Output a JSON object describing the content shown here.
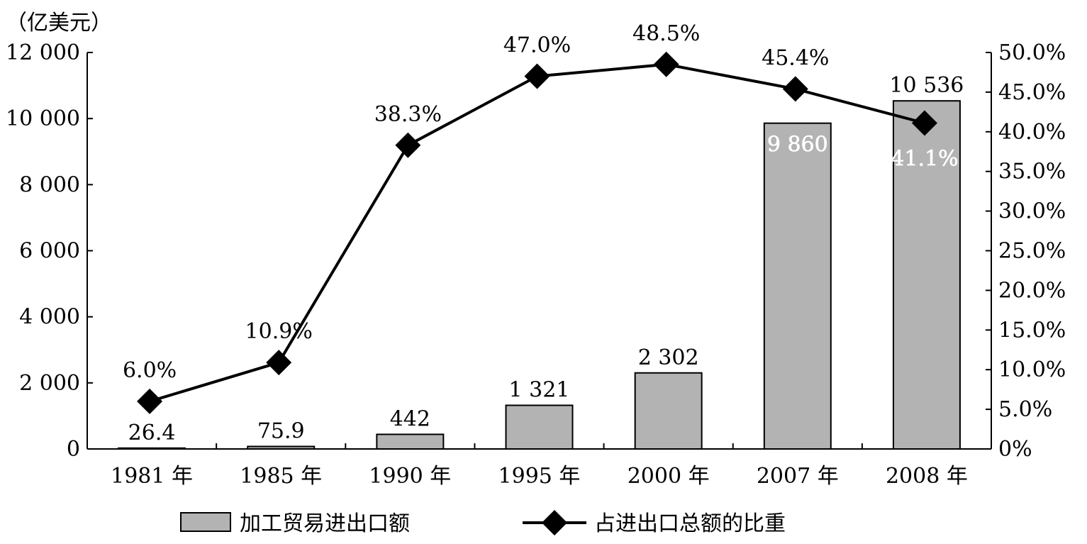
{
  "chart_data": {
    "type": "bar",
    "unit_label": "（亿美元）",
    "categories": [
      "1981 年",
      "1985 年",
      "1990 年",
      "1995 年",
      "2000 年",
      "2007 年",
      "2008 年"
    ],
    "series": [
      {
        "name": "加工贸易进出口额",
        "type": "bar",
        "axis": "left",
        "color": "#b3b3b3",
        "values": [
          26.4,
          75.9,
          442,
          1321,
          2302,
          9860,
          10536
        ],
        "labels": [
          "26.4",
          "75.9",
          "442",
          "1 321",
          "2 302",
          "9 860",
          "10 536"
        ]
      },
      {
        "name": "占进出口总额的比重",
        "type": "line",
        "axis": "right",
        "color": "#000000",
        "values": [
          6.0,
          10.9,
          38.3,
          47.0,
          48.5,
          45.4,
          41.1
        ],
        "labels": [
          "6.0%",
          "10.9%",
          "38.3%",
          "47.0%",
          "48.5%",
          "45.4%",
          "41.1%"
        ]
      }
    ],
    "y_left": {
      "ylim": [
        0,
        12000
      ],
      "ticks": [
        0,
        2000,
        4000,
        6000,
        8000,
        10000,
        12000
      ],
      "tick_labels": [
        "0",
        "2 000",
        "4 000",
        "6 000",
        "8 000",
        "10 000",
        "12 000"
      ]
    },
    "y_right": {
      "ylim": [
        0,
        50
      ],
      "ticks": [
        0,
        5,
        10,
        15,
        20,
        25,
        30,
        35,
        40,
        45,
        50
      ],
      "tick_labels": [
        "0%",
        "5.0%",
        "10.0%",
        "15.0%",
        "20.0%",
        "25.0%",
        "30.0%",
        "35.0%",
        "40.0%",
        "45.0%",
        "50.0%"
      ]
    },
    "legend_position": "bottom",
    "grid": false
  }
}
